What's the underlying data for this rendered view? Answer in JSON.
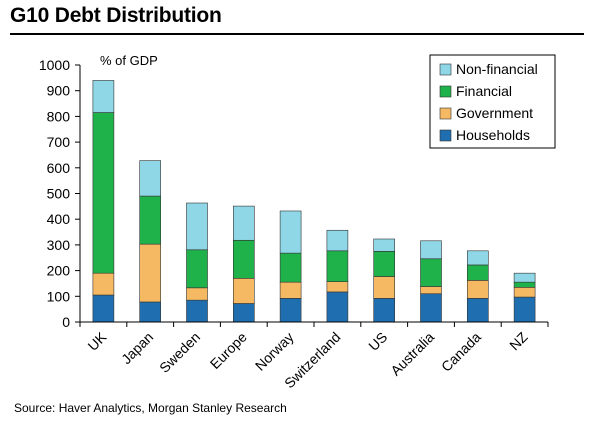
{
  "title": "G10 Debt Distribution",
  "source": "Source: Haver Analytics, Morgan Stanley Research",
  "colors": {
    "non_financial": "#8fd6e6",
    "financial": "#1fb24a",
    "government": "#f5b964",
    "households": "#1f6fb0"
  },
  "chart_data": {
    "type": "bar",
    "stacked": true,
    "ylabel": "% of GDP",
    "ylim": [
      0,
      1000
    ],
    "yticks": [
      0,
      100,
      200,
      300,
      400,
      500,
      600,
      700,
      800,
      900,
      1000
    ],
    "categories": [
      "UK",
      "Japan",
      "Sweden",
      "Europe",
      "Norway",
      "Switzerland",
      "US",
      "Australia",
      "Canada",
      "NZ"
    ],
    "series": [
      {
        "name": "Households",
        "color": "#1f6fb0",
        "values": [
          105,
          78,
          85,
          72,
          92,
          117,
          92,
          110,
          92,
          97
        ]
      },
      {
        "name": "Government",
        "color": "#f5b964",
        "values": [
          85,
          225,
          48,
          98,
          63,
          40,
          85,
          28,
          70,
          38
        ]
      },
      {
        "name": "Financial",
        "color": "#1fb24a",
        "values": [
          625,
          187,
          148,
          148,
          113,
          120,
          98,
          108,
          60,
          20
        ]
      },
      {
        "name": "Non-financial",
        "color": "#8fd6e6",
        "values": [
          125,
          138,
          182,
          133,
          164,
          80,
          48,
          70,
          55,
          35
        ]
      }
    ],
    "legend": [
      "Non-financial",
      "Financial",
      "Government",
      "Households"
    ],
    "legend_position": "top-right"
  }
}
